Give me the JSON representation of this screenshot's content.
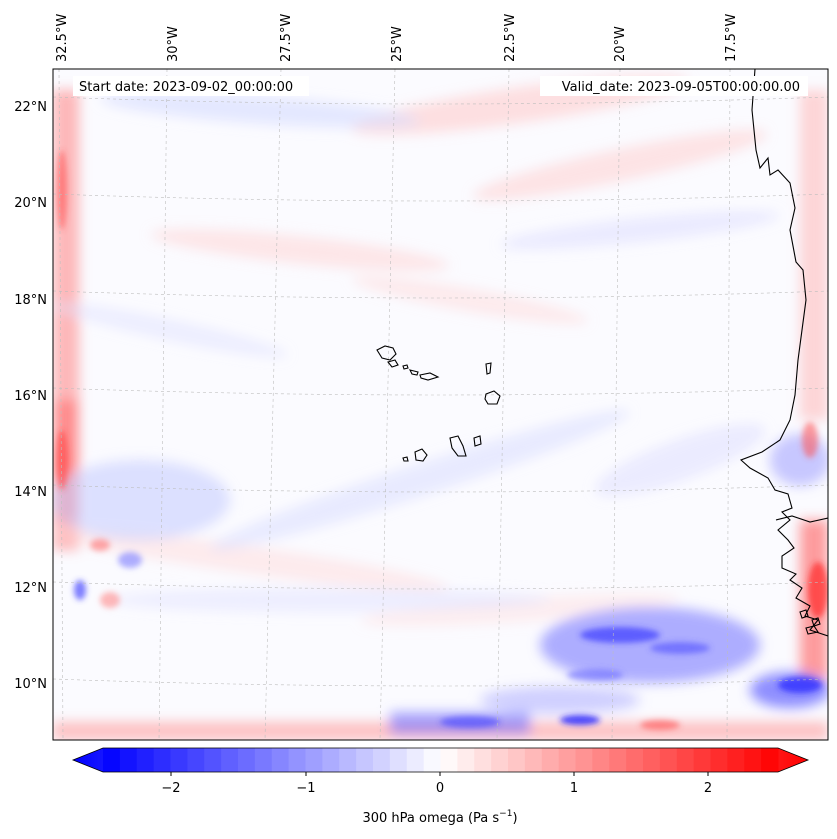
{
  "map": {
    "start_label": "Start date: 2023-09-02_00:00:00",
    "valid_label": "Valid_date: 2023-09-05T00:00:00.00",
    "lon_labels": [
      "32.5°W",
      "30°W",
      "27.5°W",
      "25°W",
      "22.5°W",
      "20°W",
      "17.5°W"
    ],
    "lat_labels": [
      "22°N",
      "20°N",
      "18°N",
      "16°N",
      "14°N",
      "12°N",
      "10°N"
    ],
    "features": [
      "Cape Verde islands",
      "West African coastline"
    ]
  },
  "colorbar": {
    "label": "300 hPa omega (Pa s",
    "label_exp": "−1",
    "label_end": ")",
    "ticks": [
      "−2",
      "−1",
      "0",
      "1",
      "2"
    ],
    "vmin": -2.5,
    "vmax": 2.5,
    "colormap": "bwr",
    "colors": {
      "low": "#0000ff",
      "mid": "#ffffff",
      "high": "#ff0000"
    }
  }
}
